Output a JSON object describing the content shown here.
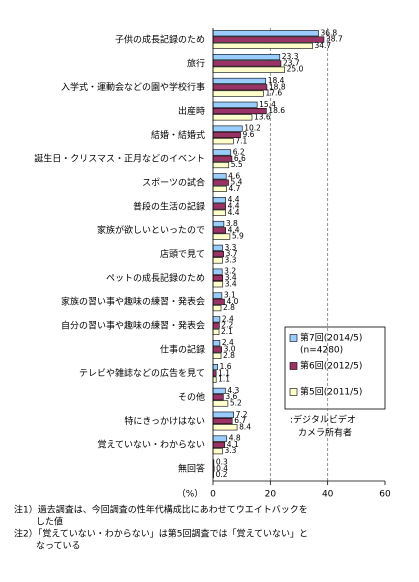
{
  "chart_data": {
    "type": "hbar",
    "categories": [
      "子供の成長記録のため",
      "旅行",
      "入学式・運動会などの園や学校行事",
      "出産時",
      "結婚・結婚式",
      "誕生日・クリスマス・正月などのイベント",
      "スポーツの試合",
      "普段の生活の記録",
      "家族が欲しいといったので",
      "店頭で見て",
      "ペットの成長記録のため",
      "家族の習い事や趣味の練習・発表会",
      "自分の習い事や趣味の練習・発表会",
      "仕事の記録",
      "テレビや雑誌などの広告を見て",
      "その他",
      "特にきっかけはない",
      "覚えていない・わからない",
      "無回答"
    ],
    "series": [
      {
        "name": "第7回(2014/5)",
        "color": "#99ccff",
        "values": [
          36.8,
          23.3,
          18.4,
          15.4,
          10.2,
          6.2,
          4.6,
          4.4,
          3.8,
          3.3,
          3.2,
          3.1,
          2.4,
          2.4,
          1.6,
          4.3,
          7.2,
          4.8,
          0.3
        ],
        "value_labels": [
          "36.8",
          "23.3",
          "18.4",
          "15.4",
          "10.2",
          "6.2",
          "4.6",
          "4.4",
          "3.8",
          "3.3",
          "3.2",
          "3.1",
          "2.4",
          "2.4",
          "1.6",
          "4.3",
          "7.2",
          "4.8",
          "0.3"
        ]
      },
      {
        "name": "第6回(2012/5)",
        "color": "#993366",
        "values": [
          38.7,
          23.7,
          18.8,
          18.6,
          9.6,
          6.6,
          5.4,
          4.4,
          4.4,
          3.7,
          3.4,
          4.0,
          2.2,
          3.0,
          1.1,
          3.6,
          6.7,
          4.1,
          0.4
        ],
        "value_labels": [
          "38.7",
          "23.7",
          "18.8",
          "18.6",
          "9.6",
          "6.6",
          "5.4",
          "4.4",
          "4.4",
          "3.7",
          "3.4",
          "4.0",
          "2.2",
          "3.0",
          "1.1",
          "3.6",
          "6.7",
          "4.1",
          "0.4"
        ]
      },
      {
        "name": "第5回(2011/5)",
        "color": "#ffffcc",
        "values": [
          34.7,
          25.0,
          17.6,
          13.6,
          7.1,
          5.5,
          4.7,
          4.4,
          5.9,
          3.3,
          3.4,
          2.8,
          2.1,
          2.8,
          1.1,
          5.2,
          8.4,
          3.3,
          0.2
        ],
        "value_labels": [
          "34.7",
          "25.0",
          "17.6",
          "13.6",
          "7.1",
          "5.5",
          "4.7",
          "4.4",
          "5.9",
          "3.3",
          "3.4",
          "2.8",
          "2.1",
          "2.8",
          "1.1",
          "5.2",
          "8.4",
          "3.3",
          "0.2"
        ]
      }
    ],
    "legend_note": "(n=4280)",
    "xlim": [
      0,
      60
    ],
    "xticks": [
      0,
      20,
      40,
      60
    ],
    "x_unit": "（%）",
    "grid": true,
    "annotation": [
      ":デジタルビデオ",
      "カメラ所有者"
    ],
    "notes": [
      "注1）過去調査は、今回調査の性年代構成比にあわせてウエイトバックを",
      "した値",
      "注2）「覚えていない・わからない」は第5回調査では「覚えていない」と",
      "なっている"
    ]
  }
}
